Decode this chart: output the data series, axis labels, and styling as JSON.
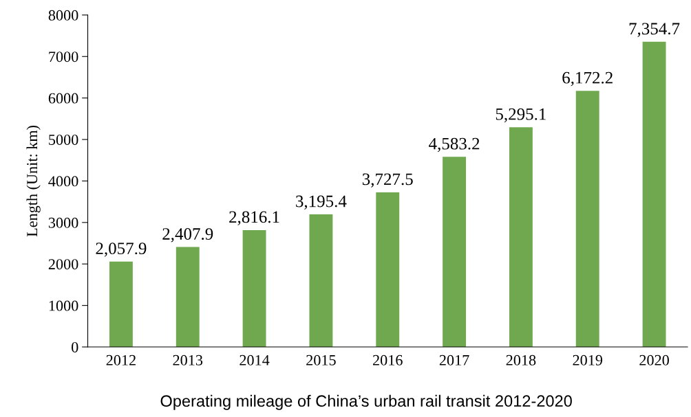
{
  "chart_data": {
    "type": "bar",
    "title": "Operating mileage of China’s urban rail transit 2012-2020",
    "ylabel": "Length (Unit: km)",
    "categories": [
      "2012",
      "2013",
      "2014",
      "2015",
      "2016",
      "2017",
      "2018",
      "2019",
      "2020"
    ],
    "values": [
      2057.9,
      2407.9,
      2816.1,
      3195.4,
      3727.5,
      4583.2,
      5295.1,
      6172.2,
      7354.7
    ],
    "value_labels": [
      "2,057.9",
      "2,407.9",
      "2,816.1",
      "3,195.4",
      "3,727.5",
      "4,583.2",
      "5,295.1",
      "6,172.2",
      "7,354.7"
    ],
    "color": "#70a84f",
    "ylim": [
      0,
      8000
    ],
    "yticks": [
      0,
      1000,
      2000,
      3000,
      4000,
      5000,
      6000,
      7000,
      8000
    ],
    "grid": false,
    "legend": false
  }
}
